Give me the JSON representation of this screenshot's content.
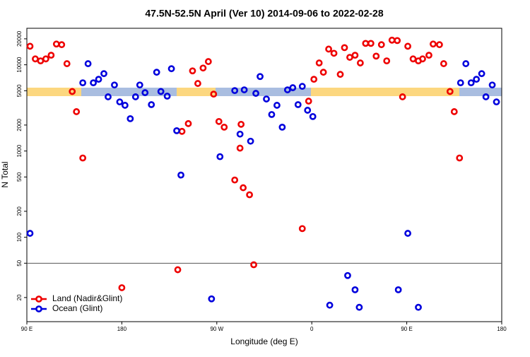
{
  "chart_data": {
    "type": "scatter",
    "title": "47.5N-52.5N April (Ver 10)   2014-09-06 to 2022-02-28",
    "xlabel": "Longitude (deg E)",
    "ylabel": "N Total",
    "xlim": [
      90,
      540
    ],
    "ylim": [
      10.5,
      26500
    ],
    "ylog": true,
    "xticks": [
      {
        "value": 90,
        "label": "90 E"
      },
      180,
      {
        "value": 270,
        "label": "90 W"
      },
      {
        "value": 360,
        "label": "0"
      },
      {
        "value": 450,
        "label": "90 E"
      },
      {
        "value": 540,
        "label": "180"
      }
    ],
    "yticks": [
      20,
      50,
      100,
      200,
      500,
      1000,
      2000,
      5000,
      10000,
      20000
    ],
    "hline": 50,
    "legend": "lower left",
    "series": [
      {
        "name": "Land (Nadir&Glint)",
        "color": "#ee0000",
        "x": [
          93,
          98,
          103,
          108,
          113,
          118,
          123,
          128,
          133,
          137,
          143,
          180,
          233,
          237,
          243,
          247,
          252,
          257,
          262,
          267,
          272,
          277,
          287,
          292,
          293,
          295,
          301,
          305,
          351,
          357,
          362,
          367,
          371,
          376,
          381,
          387,
          391,
          396,
          401,
          406,
          411,
          416,
          421,
          426,
          431,
          436,
          441,
          446,
          451,
          456,
          461,
          465,
          471,
          475,
          481,
          485,
          491,
          495,
          500
        ],
        "values": [
          16400,
          11700,
          11100,
          11700,
          12900,
          17400,
          17100,
          10300,
          4900,
          2860,
          830,
          26,
          42,
          1690,
          2080,
          8500,
          6070,
          9170,
          10900,
          4570,
          2200,
          1890,
          461,
          1080,
          2040,
          375,
          311,
          48,
          126,
          3790,
          6790,
          10500,
          8190,
          15200,
          13600,
          7740,
          15800,
          12200,
          12900,
          10500,
          17700,
          17700,
          12600,
          17100,
          11100,
          19300,
          19100,
          4250,
          16400,
          11700,
          11100,
          11700,
          12900,
          17400,
          17100,
          10300,
          4900,
          2860,
          830
        ]
      },
      {
        "name": "Ocean (Glint)",
        "color": "#0000dd",
        "x": [
          93,
          143,
          148,
          153,
          158,
          163,
          167,
          173,
          178,
          183,
          188,
          193,
          197,
          202,
          208,
          213,
          217,
          223,
          227,
          232,
          236,
          265,
          273,
          287,
          292,
          296,
          302,
          307,
          311,
          317,
          322,
          327,
          332,
          337,
          342,
          347,
          351,
          356,
          361,
          377,
          394,
          401,
          405,
          442,
          451,
          461,
          501,
          506,
          511,
          516,
          521,
          525,
          531,
          535
        ],
        "values": [
          111,
          6180,
          10300,
          6180,
          6790,
          7890,
          4250,
          5830,
          3710,
          3390,
          2370,
          4250,
          5830,
          4750,
          3450,
          8190,
          4900,
          4330,
          9000,
          1720,
          526,
          19.3,
          860,
          5020,
          1570,
          5120,
          1300,
          4660,
          7310,
          4010,
          2650,
          3390,
          1890,
          5120,
          5420,
          3450,
          5620,
          2970,
          2510,
          16.3,
          36,
          24.6,
          15.4,
          24.6,
          111,
          15.4,
          6180,
          10300,
          6180,
          6790,
          7890,
          4250,
          5830,
          3710
        ]
      }
    ]
  }
}
